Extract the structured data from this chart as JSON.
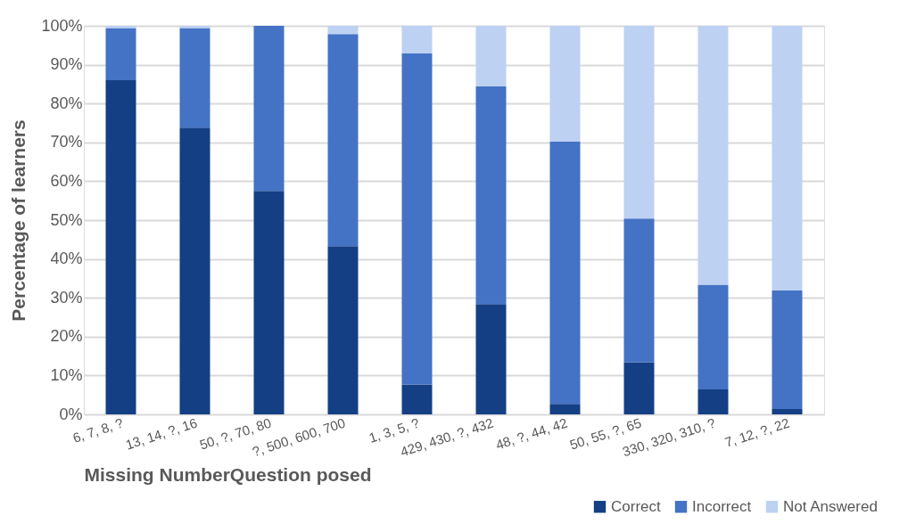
{
  "chart_data": {
    "type": "bar",
    "stacked": true,
    "xlabel": "Missing NumberQuestion posed",
    "ylabel": "Percentage of learners",
    "categories": [
      "6, 7, 8, ?",
      "13, 14, ?, 16",
      "50, ?, 70, 80",
      "?, 500, 600, 700",
      "1, 3, 5, ?",
      "429, 430, ?, 432",
      "48, ?, 44, 42",
      "50, 55, ?, 65",
      "330, 320, 310, ?",
      "7, 12, ?, 22"
    ],
    "series": [
      {
        "name": "Correct",
        "color": "#143f85",
        "values": [
          86,
          73.8,
          57.5,
          43.3,
          7.7,
          28.4,
          2.7,
          13.4,
          6.4,
          1.4
        ]
      },
      {
        "name": "Incorrect",
        "color": "#4472c4",
        "values": [
          13.4,
          25.6,
          42.5,
          54.6,
          85.2,
          56.0,
          67.5,
          37.0,
          27.0,
          30.5
        ]
      },
      {
        "name": "Not Answered",
        "color": "#bdd1f3",
        "values": [
          0.6,
          0.6,
          0,
          2.1,
          7.1,
          15.6,
          29.8,
          49.6,
          66.6,
          68.1
        ]
      }
    ],
    "ylim": [
      0,
      100
    ],
    "yticks": [
      {
        "value": 0,
        "label": "0%"
      },
      {
        "value": 10,
        "label": "10%"
      },
      {
        "value": 20,
        "label": "20%"
      },
      {
        "value": 30,
        "label": "30%"
      },
      {
        "value": 40,
        "label": "40%"
      },
      {
        "value": 50,
        "label": "50%"
      },
      {
        "value": 60,
        "label": "60%"
      },
      {
        "value": 70,
        "label": "70%"
      },
      {
        "value": 80,
        "label": "80%"
      },
      {
        "value": 90,
        "label": "90%"
      },
      {
        "value": 100,
        "label": "100%"
      }
    ],
    "grid": "y",
    "legend": "bottom right"
  }
}
